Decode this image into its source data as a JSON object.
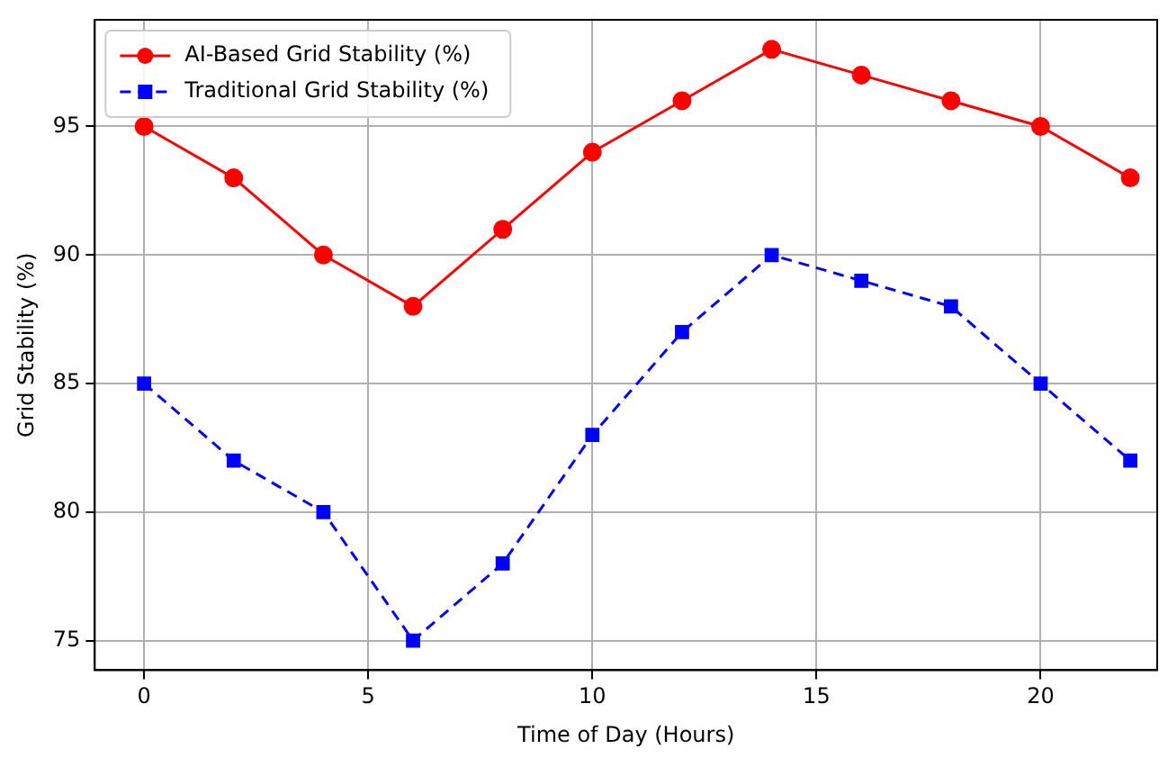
{
  "chart_data": {
    "type": "line",
    "xlabel": "Time of Day (Hours)",
    "ylabel": "Grid Stability (%)",
    "x": [
      0,
      2,
      4,
      6,
      8,
      10,
      12,
      14,
      16,
      18,
      20,
      22
    ],
    "series": [
      {
        "name": "AI-Based Grid Stability (%)",
        "color": "#ff0000",
        "marker": "circle",
        "line_style": "solid",
        "values": [
          95,
          93,
          90,
          88,
          91,
          94,
          96,
          98,
          97,
          96,
          95,
          93
        ]
      },
      {
        "name": "Traditional Grid Stability (%)",
        "color": "#0000ff",
        "marker": "square",
        "line_style": "dashed",
        "values": [
          85,
          82,
          80,
          75,
          78,
          83,
          87,
          90,
          89,
          88,
          85,
          82
        ]
      }
    ],
    "xlim": [
      -1.1,
      22.6
    ],
    "xticks": [
      0,
      5,
      10,
      15,
      20
    ],
    "ylim": [
      73.85,
      99.15
    ],
    "yticks": [
      75,
      80,
      85,
      90,
      95
    ],
    "grid": true,
    "legend": "top left"
  }
}
